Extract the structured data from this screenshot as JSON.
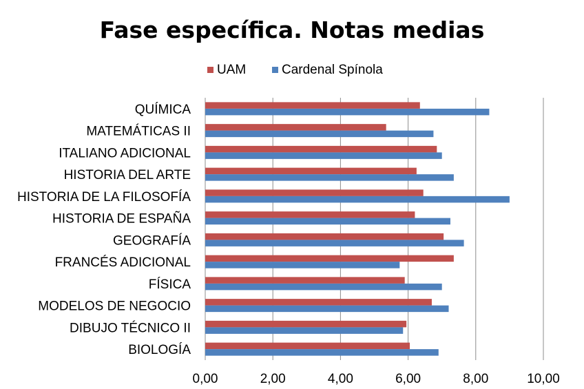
{
  "chart_data": {
    "type": "bar",
    "orientation": "horizontal",
    "title": "Fase específica. Notas medias",
    "xlabel": "",
    "ylabel": "",
    "xlim": [
      0,
      10
    ],
    "x_ticks": [
      "0,00",
      "2,00",
      "4,00",
      "6,00",
      "8,00",
      "10,00"
    ],
    "grid": true,
    "legend_position": "top",
    "categories": [
      "QUÍMICA",
      "MATEMÁTICAS II",
      "ITALIANO ADICIONAL",
      "HISTORIA DEL ARTE",
      "HISTORIA DE LA FILOSOFÍA",
      "HISTORIA DE ESPAÑA",
      "GEOGRAFÍA",
      "FRANCÉS ADICIONAL",
      "FÍSICA",
      "MODELOS DE NEGOCIO",
      "DIBUJO TÉCNICO II",
      "BIOLOGÍA"
    ],
    "series": [
      {
        "name": "UAM",
        "color": "#c0504d",
        "values": [
          6.35,
          5.35,
          6.85,
          6.25,
          6.45,
          6.2,
          7.05,
          7.35,
          5.9,
          6.7,
          5.95,
          6.05
        ]
      },
      {
        "name": "Cardenal Spínola",
        "color": "#4f81bd",
        "values": [
          8.4,
          6.75,
          7.0,
          7.35,
          9.0,
          7.25,
          7.65,
          5.75,
          7.0,
          7.2,
          5.85,
          6.9
        ]
      }
    ]
  }
}
